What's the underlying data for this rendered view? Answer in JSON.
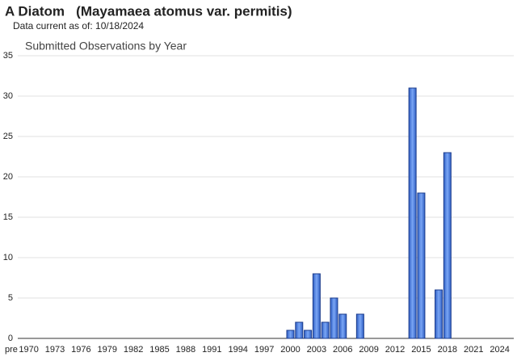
{
  "header": {
    "title": "A Diatom   (Mayamaea atomus var. permitis)",
    "subtitle": "Data current as of: 10/18/2024"
  },
  "chart_data": {
    "type": "bar",
    "title": "Submitted Observations by Year",
    "categories": [
      "pre",
      null,
      "1970",
      null,
      null,
      "1973",
      null,
      null,
      "1976",
      null,
      null,
      "1979",
      null,
      null,
      "1982",
      null,
      null,
      "1985",
      null,
      null,
      "1988",
      null,
      null,
      "1991",
      null,
      null,
      "1994",
      null,
      null,
      "1997",
      null,
      null,
      "2000",
      null,
      null,
      "2003",
      null,
      null,
      "2006",
      null,
      null,
      "2009",
      null,
      null,
      "2012",
      null,
      null,
      "2015",
      null,
      null,
      "2018",
      null,
      null,
      "2021",
      null,
      null,
      "2024"
    ],
    "values": [
      0,
      0,
      0,
      0,
      0,
      0,
      0,
      0,
      0,
      0,
      0,
      0,
      0,
      0,
      0,
      0,
      0,
      0,
      0,
      0,
      0,
      0,
      0,
      0,
      0,
      0,
      0,
      0,
      0,
      0,
      0,
      0,
      1,
      2,
      1,
      8,
      2,
      5,
      3,
      0,
      3,
      0,
      0,
      0,
      0,
      0,
      31,
      18,
      0,
      6,
      23,
      0,
      0,
      0,
      0,
      0,
      0
    ],
    "color": "#4a7fe0",
    "ylim": [
      0,
      35
    ],
    "yticks": [
      0,
      5,
      10,
      15,
      20,
      25,
      30,
      35
    ],
    "grid": true
  }
}
